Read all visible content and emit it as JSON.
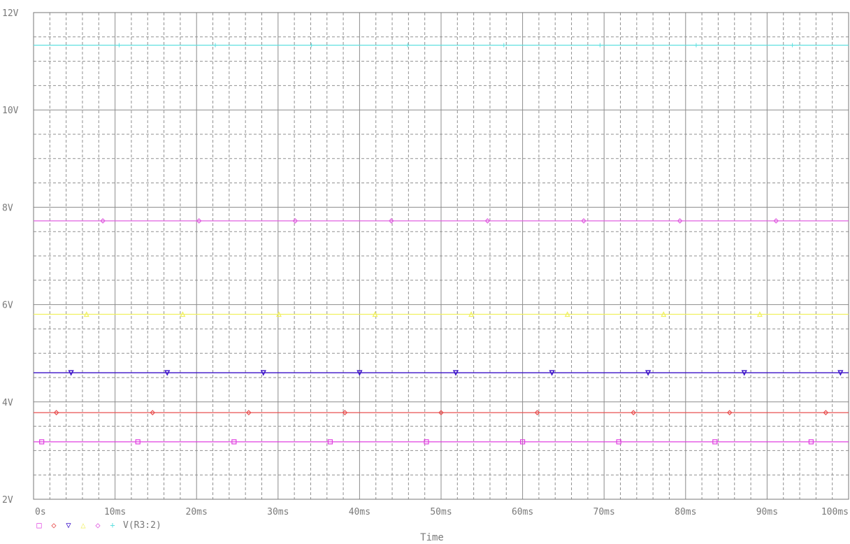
{
  "chart_data": {
    "type": "line",
    "xlabel": "Time",
    "xlim": [
      0,
      100
    ],
    "ylim": [
      2,
      12
    ],
    "grid": true,
    "x_ticks": [
      {
        "v": 0,
        "label": "0s"
      },
      {
        "v": 10,
        "label": "10ms"
      },
      {
        "v": 20,
        "label": "20ms"
      },
      {
        "v": 30,
        "label": "30ms"
      },
      {
        "v": 40,
        "label": "40ms"
      },
      {
        "v": 50,
        "label": "50ms"
      },
      {
        "v": 60,
        "label": "60ms"
      },
      {
        "v": 70,
        "label": "70ms"
      },
      {
        "v": 80,
        "label": "80ms"
      },
      {
        "v": 90,
        "label": "90ms"
      },
      {
        "v": 100,
        "label": "100ms"
      }
    ],
    "y_ticks": [
      {
        "v": 2,
        "label": "2V"
      },
      {
        "v": 4,
        "label": "4V"
      },
      {
        "v": 6,
        "label": "6V"
      },
      {
        "v": 8,
        "label": "8V"
      },
      {
        "v": 10,
        "label": "10V"
      },
      {
        "v": 12,
        "label": "12V"
      }
    ],
    "series": [
      {
        "marker": "square",
        "color": "#e040e0",
        "x": [
          0,
          100
        ],
        "values": [
          3.18,
          3.18
        ]
      },
      {
        "marker": "diamond",
        "color": "#e85050",
        "x": [
          0,
          100
        ],
        "values": [
          3.78,
          3.78
        ]
      },
      {
        "marker": "triangle",
        "color": "#3a10c8",
        "x": [
          0,
          100
        ],
        "values": [
          4.6,
          4.6
        ]
      },
      {
        "marker": "triangle-up",
        "color": "#f0f060",
        "x": [
          0,
          100
        ],
        "values": [
          5.8,
          5.8
        ]
      },
      {
        "marker": "diamond",
        "color": "#e060e0",
        "x": [
          0,
          100
        ],
        "values": [
          7.72,
          7.72
        ]
      },
      {
        "name": "V(R3:2)",
        "marker": "plus",
        "color": "#60e0e0",
        "x": [
          0,
          100
        ],
        "values": [
          11.33,
          11.33
        ]
      }
    ],
    "legend_placement": "bottom-left"
  }
}
